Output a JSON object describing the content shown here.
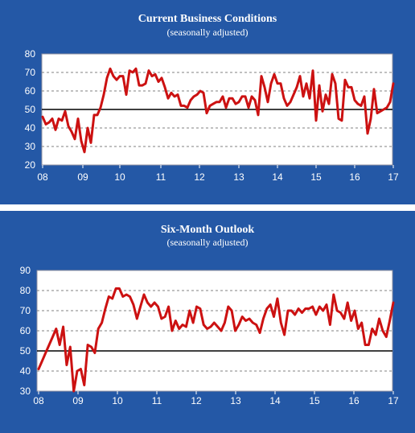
{
  "colors": {
    "panel_background": "#2458a6",
    "plot_background": "#ffffff",
    "series_line": "#cc1111",
    "reference_line": "#000000",
    "gridline": "#808080",
    "text": "#ffffff"
  },
  "chart_data": [
    {
      "type": "line",
      "title": "Current  Business Conditions",
      "subtitle": "(seasonally adjusted)",
      "xlabel": "",
      "ylabel": "",
      "x_tick_labels": [
        "08",
        "09",
        "10",
        "11",
        "12",
        "13",
        "14",
        "15",
        "16",
        "17"
      ],
      "y_ticks": [
        20,
        30,
        40,
        50,
        60,
        70,
        80
      ],
      "ylim": [
        20,
        80
      ],
      "reference_line": 50,
      "grid": "horizontal dashed",
      "legend": "none",
      "series": [
        {
          "values": [
            46,
            42,
            43,
            45,
            39,
            45,
            44,
            49,
            41,
            38,
            34,
            45,
            33,
            27,
            40,
            32,
            47,
            47,
            51,
            58,
            67,
            72,
            68,
            66,
            68,
            68,
            58,
            71,
            70,
            72,
            63,
            63,
            64,
            71,
            68,
            69,
            65,
            67,
            62,
            56,
            59,
            57,
            58,
            52,
            52,
            51,
            55,
            57,
            58,
            60,
            59,
            48,
            52,
            53,
            54,
            54,
            57,
            51,
            56,
            56,
            53,
            54,
            57,
            57,
            51,
            57,
            55,
            47,
            68,
            62,
            54,
            64,
            69,
            64,
            64,
            56,
            52,
            54,
            58,
            62,
            68,
            57,
            64,
            56,
            71,
            44,
            63,
            49,
            58,
            53,
            69,
            64,
            45,
            44,
            66,
            62,
            62,
            55,
            53,
            52,
            57,
            37,
            45,
            61,
            48,
            49,
            50,
            51,
            54,
            64
          ]
        }
      ]
    },
    {
      "type": "line",
      "title": "Six-Month Outlook",
      "subtitle": "(seasonally adjusted)",
      "xlabel": "",
      "ylabel": "",
      "x_tick_labels": [
        "08",
        "09",
        "10",
        "11",
        "12",
        "13",
        "14",
        "15",
        "16",
        "17"
      ],
      "y_ticks": [
        30,
        40,
        50,
        60,
        70,
        80,
        90
      ],
      "ylim": [
        30,
        90
      ],
      "reference_line": 50,
      "grid": "horizontal dashed",
      "legend": "none",
      "series": [
        {
          "values": [
            41,
            45,
            49,
            53,
            57,
            61,
            53,
            62,
            43,
            52,
            30,
            40,
            41,
            33,
            53,
            52,
            49,
            61,
            64,
            71,
            77,
            76,
            81,
            81,
            77,
            78,
            77,
            73,
            66,
            72,
            78,
            74,
            72,
            74,
            72,
            66,
            67,
            72,
            60,
            65,
            61,
            63,
            62,
            70,
            64,
            72,
            71,
            63,
            61,
            62,
            64,
            62,
            60,
            64,
            72,
            70,
            60,
            63,
            67,
            65,
            66,
            64,
            63,
            59,
            66,
            71,
            73,
            67,
            76,
            64,
            58,
            70,
            70,
            68,
            71,
            69,
            71,
            71,
            72,
            68,
            72,
            70,
            73,
            63,
            78,
            70,
            69,
            66,
            74,
            65,
            70,
            61,
            64,
            53,
            53,
            61,
            58,
            66,
            60,
            57,
            65,
            74
          ]
        }
      ]
    }
  ]
}
